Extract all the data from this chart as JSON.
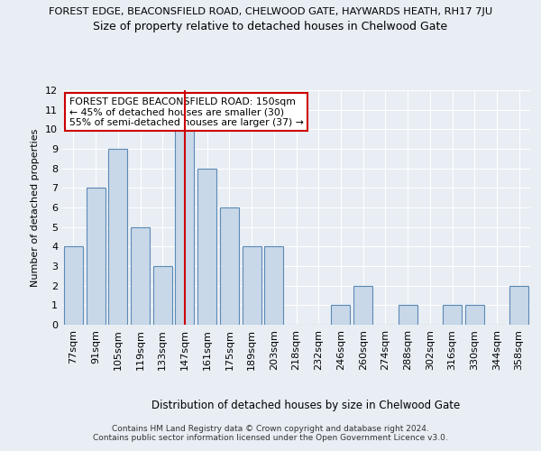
{
  "top_title": "FOREST EDGE, BEACONSFIELD ROAD, CHELWOOD GATE, HAYWARDS HEATH, RH17 7JU",
  "subtitle": "Size of property relative to detached houses in Chelwood Gate",
  "xlabel": "Distribution of detached houses by size in Chelwood Gate",
  "ylabel": "Number of detached properties",
  "categories": [
    "77sqm",
    "91sqm",
    "105sqm",
    "119sqm",
    "133sqm",
    "147sqm",
    "161sqm",
    "175sqm",
    "189sqm",
    "203sqm",
    "218sqm",
    "232sqm",
    "246sqm",
    "260sqm",
    "274sqm",
    "288sqm",
    "302sqm",
    "316sqm",
    "330sqm",
    "344sqm",
    "358sqm"
  ],
  "values": [
    4,
    7,
    9,
    5,
    3,
    10,
    8,
    6,
    4,
    4,
    0,
    0,
    1,
    2,
    0,
    1,
    0,
    1,
    1,
    0,
    2
  ],
  "bar_color": "#c8d8e8",
  "bar_edge_color": "#5b8ab5",
  "highlight_index": 5,
  "highlight_line_color": "#cc0000",
  "ylim": [
    0,
    12
  ],
  "yticks": [
    0,
    1,
    2,
    3,
    4,
    5,
    6,
    7,
    8,
    9,
    10,
    11,
    12
  ],
  "annotation_box_text": "FOREST EDGE BEACONSFIELD ROAD: 150sqm\n← 45% of detached houses are smaller (30)\n55% of semi-detached houses are larger (37) →",
  "footer_line1": "Contains HM Land Registry data © Crown copyright and database right 2024.",
  "footer_line2": "Contains public sector information licensed under the Open Government Licence v3.0.",
  "background_color": "#e8eef4",
  "plot_bg_color": "#e8eef4",
  "grid_color": "#ffffff"
}
